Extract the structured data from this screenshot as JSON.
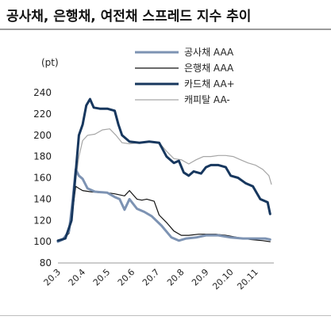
{
  "title": "공사채, 은행채, 여전채 스프레드 지수 추이",
  "chart_data": {
    "type": "line",
    "unit_label": "(pt)",
    "ylim": [
      80,
      240
    ],
    "yticks": [
      80,
      100,
      120,
      140,
      160,
      180,
      200,
      220,
      240
    ],
    "xticks": [
      "20.3",
      "20.4",
      "20.5",
      "20.6",
      "20.7",
      "20.8",
      "20.9",
      "20.10",
      "20.11"
    ],
    "xlim": [
      0,
      8.75
    ],
    "legend_position": "top-right",
    "series": [
      {
        "name": "공사채 AAA",
        "color": "#7d93b3",
        "width": 3,
        "points": [
          [
            0,
            100
          ],
          [
            0.2,
            102
          ],
          [
            0.45,
            110
          ],
          [
            0.6,
            140
          ],
          [
            0.72,
            168
          ],
          [
            0.85,
            162
          ],
          [
            1.0,
            159
          ],
          [
            1.2,
            150
          ],
          [
            1.5,
            147
          ],
          [
            2.0,
            146
          ],
          [
            2.3,
            142
          ],
          [
            2.5,
            140
          ],
          [
            2.7,
            130
          ],
          [
            2.9,
            140
          ],
          [
            3.2,
            131
          ],
          [
            3.5,
            128
          ],
          [
            3.8,
            124
          ],
          [
            4.2,
            115
          ],
          [
            4.6,
            104
          ],
          [
            4.9,
            101
          ],
          [
            5.2,
            103
          ],
          [
            5.6,
            104
          ],
          [
            6.0,
            106
          ],
          [
            6.5,
            106
          ],
          [
            7.0,
            104
          ],
          [
            7.5,
            103
          ],
          [
            8.0,
            103
          ],
          [
            8.4,
            103
          ],
          [
            8.6,
            102
          ]
        ]
      },
      {
        "name": "은행채 AAA",
        "color": "#111111",
        "width": 1.2,
        "points": [
          [
            0,
            101
          ],
          [
            0.2,
            102
          ],
          [
            0.45,
            108
          ],
          [
            0.6,
            130
          ],
          [
            0.72,
            152
          ],
          [
            0.85,
            150
          ],
          [
            1.0,
            148
          ],
          [
            1.3,
            147
          ],
          [
            1.7,
            146
          ],
          [
            2.0,
            146
          ],
          [
            2.3,
            145
          ],
          [
            2.7,
            143
          ],
          [
            2.9,
            148
          ],
          [
            3.2,
            140
          ],
          [
            3.4,
            139
          ],
          [
            3.6,
            140
          ],
          [
            3.9,
            138
          ],
          [
            4.1,
            125
          ],
          [
            4.4,
            118
          ],
          [
            4.7,
            110
          ],
          [
            5.0,
            106
          ],
          [
            5.3,
            106
          ],
          [
            5.7,
            107
          ],
          [
            6.0,
            107
          ],
          [
            6.4,
            107
          ],
          [
            6.8,
            106
          ],
          [
            7.3,
            104
          ],
          [
            7.8,
            102
          ],
          [
            8.3,
            101
          ],
          [
            8.6,
            100
          ]
        ]
      },
      {
        "name": "카드채 AA+",
        "color": "#17375e",
        "width": 3,
        "points": [
          [
            0,
            101
          ],
          [
            0.3,
            103
          ],
          [
            0.55,
            120
          ],
          [
            0.7,
            160
          ],
          [
            0.85,
            200
          ],
          [
            1.0,
            210
          ],
          [
            1.15,
            228
          ],
          [
            1.3,
            234
          ],
          [
            1.45,
            226
          ],
          [
            1.7,
            225
          ],
          [
            2.0,
            225
          ],
          [
            2.3,
            223
          ],
          [
            2.45,
            210
          ],
          [
            2.6,
            200
          ],
          [
            2.9,
            194
          ],
          [
            3.3,
            193
          ],
          [
            3.7,
            194
          ],
          [
            4.1,
            193
          ],
          [
            4.4,
            180
          ],
          [
            4.7,
            174
          ],
          [
            4.9,
            176
          ],
          [
            5.1,
            165
          ],
          [
            5.3,
            162
          ],
          [
            5.5,
            166
          ],
          [
            5.8,
            164
          ],
          [
            6.0,
            170
          ],
          [
            6.2,
            172
          ],
          [
            6.5,
            172
          ],
          [
            6.8,
            170
          ],
          [
            7.0,
            162
          ],
          [
            7.3,
            160
          ],
          [
            7.6,
            155
          ],
          [
            7.9,
            152
          ],
          [
            8.2,
            140
          ],
          [
            8.5,
            137
          ],
          [
            8.6,
            126
          ]
        ]
      },
      {
        "name": "캐피탈 AA-",
        "color": "#a6a6a6",
        "width": 1.2,
        "points": [
          [
            0,
            101
          ],
          [
            0.3,
            103
          ],
          [
            0.55,
            118
          ],
          [
            0.7,
            155
          ],
          [
            0.85,
            180
          ],
          [
            1.0,
            195
          ],
          [
            1.2,
            200
          ],
          [
            1.5,
            201
          ],
          [
            1.8,
            205
          ],
          [
            2.1,
            206
          ],
          [
            2.35,
            200
          ],
          [
            2.6,
            193
          ],
          [
            2.9,
            192
          ],
          [
            3.3,
            193
          ],
          [
            3.7,
            194
          ],
          [
            4.1,
            193
          ],
          [
            4.4,
            185
          ],
          [
            4.7,
            178
          ],
          [
            5.0,
            177
          ],
          [
            5.3,
            173
          ],
          [
            5.6,
            177
          ],
          [
            5.9,
            180
          ],
          [
            6.2,
            180
          ],
          [
            6.5,
            181
          ],
          [
            6.8,
            181
          ],
          [
            7.1,
            180
          ],
          [
            7.4,
            177
          ],
          [
            7.7,
            174
          ],
          [
            8.0,
            172
          ],
          [
            8.3,
            168
          ],
          [
            8.55,
            162
          ],
          [
            8.65,
            154
          ]
        ]
      }
    ]
  }
}
